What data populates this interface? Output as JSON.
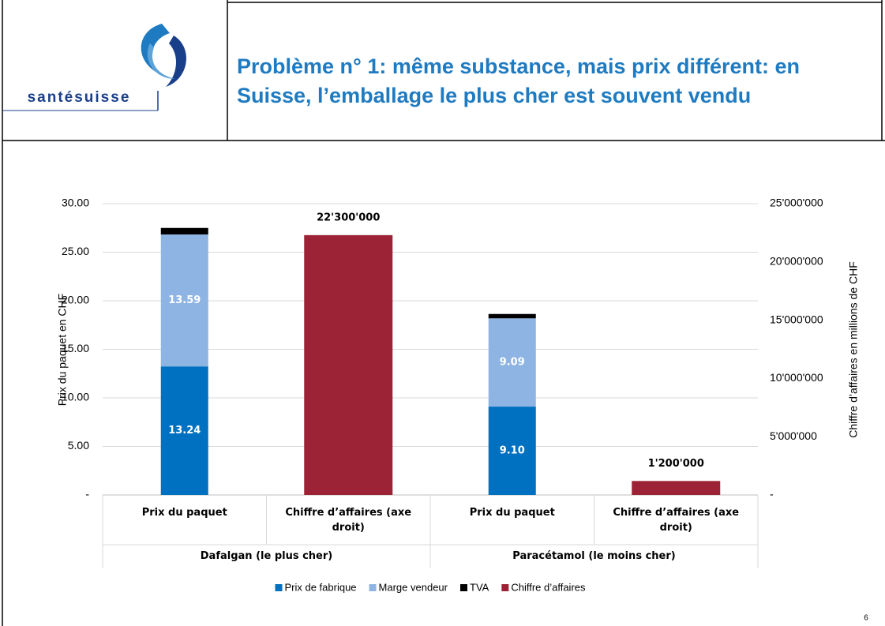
{
  "header": {
    "logo_text": "santésuisse",
    "title": "Problème n° 1: même substance, mais prix différent: en Suisse, l’emballage le plus cher est souvent vendu"
  },
  "page_number": "6",
  "chart_data": {
    "type": "bar",
    "stacked": true,
    "categories": [
      "Prix du paquet",
      "Chiffre d’affaires (axe droit)",
      "Prix du paquet",
      "Chiffre d’affaires (axe droit)"
    ],
    "groups": [
      "Dafalgan (le plus cher)",
      "Paracétamol (le moins cher)"
    ],
    "ylabel": "Prix du paquet en CHF",
    "y2label": "Chiffre d’affaires en millions de CHF",
    "ylim": [
      0,
      30
    ],
    "yticks": [
      {
        "value": 0,
        "label": "-"
      },
      {
        "value": 5,
        "label": "5.00"
      },
      {
        "value": 10,
        "label": "10.00"
      },
      {
        "value": 15,
        "label": "15.00"
      },
      {
        "value": 20,
        "label": "20.00"
      },
      {
        "value": 25,
        "label": "25.00"
      },
      {
        "value": 30,
        "label": "30.00"
      }
    ],
    "y2lim": [
      0,
      25000000
    ],
    "y2ticks": [
      {
        "value": 0,
        "label": "-"
      },
      {
        "value": 5000000,
        "label": "5'000'000"
      },
      {
        "value": 10000000,
        "label": "10'000'000"
      },
      {
        "value": 15000000,
        "label": "15'000'000"
      },
      {
        "value": 20000000,
        "label": "20'000'000"
      },
      {
        "value": 25000000,
        "label": "25'000'000"
      }
    ],
    "grid": true,
    "legend": "bottom",
    "series": [
      {
        "name": "Prix de fabrique",
        "color": "#0070c0",
        "values": [
          13.24,
          null,
          9.1,
          null
        ],
        "value_labels": [
          "13.24",
          null,
          "9.10",
          null
        ]
      },
      {
        "name": "Marge vendeur",
        "color": "#8eb4e3",
        "values": [
          13.59,
          null,
          9.09,
          null
        ],
        "value_labels": [
          "13.59",
          null,
          "9.09",
          null
        ]
      },
      {
        "name": "TVA",
        "color": "#000000",
        "values": [
          0.67,
          null,
          0.45,
          null
        ]
      },
      {
        "name": "Chiffre d’affaires",
        "color": "#9b2335",
        "axis": "y2",
        "values": [
          null,
          22300000,
          null,
          1200000
        ],
        "value_labels": [
          null,
          "22'300'000",
          null,
          "1'200'000"
        ]
      }
    ]
  }
}
